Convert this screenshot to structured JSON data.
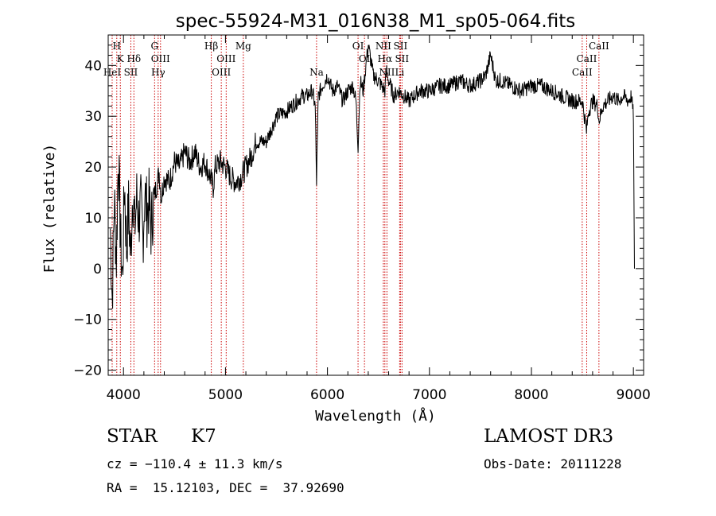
{
  "chart_data": {
    "type": "line",
    "title": "spec-55924-M31_016N38_M1_sp05-064.fits",
    "xlabel": "Wavelength (Å)",
    "ylabel": "Flux (relative)",
    "xlim": [
      3850,
      9100
    ],
    "ylim": [
      -21,
      46
    ],
    "x_ticks": [
      4000,
      5000,
      6000,
      7000,
      8000,
      9000
    ],
    "y_ticks": [
      -20,
      -10,
      0,
      10,
      20,
      30,
      40
    ],
    "series": [
      {
        "name": "flux",
        "x": [
          3870,
          3890,
          3910,
          3930,
          3950,
          3970,
          3990,
          4010,
          4030,
          4050,
          4070,
          4090,
          4110,
          4130,
          4150,
          4170,
          4190,
          4210,
          4230,
          4250,
          4270,
          4290,
          4310,
          4330,
          4350,
          4370,
          4400,
          4450,
          4500,
          4550,
          4600,
          4650,
          4700,
          4750,
          4800,
          4850,
          4880,
          4900,
          4950,
          5000,
          5050,
          5100,
          5150,
          5200,
          5250,
          5300,
          5400,
          5500,
          5600,
          5700,
          5750,
          5800,
          5850,
          5880,
          5893,
          5910,
          5950,
          6000,
          6050,
          6100,
          6150,
          6200,
          6250,
          6280,
          6300,
          6320,
          6350,
          6400,
          6450,
          6500,
          6530,
          6563,
          6580,
          6600,
          6650,
          6700,
          6750,
          6800,
          6900,
          7000,
          7100,
          7200,
          7300,
          7400,
          7500,
          7550,
          7600,
          7650,
          7700,
          7800,
          7900,
          8000,
          8100,
          8200,
          8300,
          8400,
          8500,
          8540,
          8560,
          8600,
          8650,
          8662,
          8700,
          8750,
          8800,
          8850,
          8900,
          8950,
          8980,
          9000,
          9010
        ],
        "y": [
          8,
          -6,
          14,
          2,
          23,
          6,
          -2,
          17,
          4,
          12,
          2,
          16,
          8,
          14,
          10,
          12,
          6,
          15,
          11,
          13,
          8,
          12,
          15,
          17,
          19,
          14,
          18,
          17,
          21,
          20,
          23,
          21,
          23,
          20,
          21,
          18,
          16,
          20,
          21,
          20,
          18,
          17,
          18,
          20,
          22,
          25,
          25,
          30,
          31,
          33,
          34,
          34,
          35,
          32,
          17,
          34,
          36,
          38,
          35,
          36,
          33,
          35,
          36,
          33,
          24,
          37,
          35,
          44,
          38,
          37,
          36,
          35,
          39,
          37,
          34,
          35,
          34,
          33,
          35,
          35,
          36,
          36,
          37,
          36,
          37,
          38,
          42,
          37,
          37,
          36,
          35,
          36,
          36,
          35,
          34,
          33,
          33,
          27,
          31,
          33,
          32,
          29,
          32,
          33,
          34,
          33,
          34,
          33,
          34,
          30,
          0
        ]
      }
    ],
    "lines": [
      {
        "name": "H",
        "wl": 3934,
        "row": 1
      },
      {
        "name": "K",
        "wl": 3969,
        "row": 2
      },
      {
        "name": "HeI",
        "wl": 3889,
        "row": 3
      },
      {
        "name": "SII",
        "wl": 4072,
        "row": 3
      },
      {
        "name": "Hδ",
        "wl": 4102,
        "row": 2
      },
      {
        "name": "G",
        "wl": 4305,
        "row": 1
      },
      {
        "name": "OIII",
        "wl": 4363,
        "row": 2
      },
      {
        "name": "Hγ",
        "wl": 4340,
        "row": 3
      },
      {
        "name": "Hβ",
        "wl": 4861,
        "row": 1
      },
      {
        "name": "OIII",
        "wl": 4959,
        "row": 3
      },
      {
        "name": "OIII",
        "wl": 5007,
        "row": 2
      },
      {
        "name": "Mg",
        "wl": 5175,
        "row": 1
      },
      {
        "name": "Na",
        "wl": 5893,
        "row": 3
      },
      {
        "name": "OI",
        "wl": 6300,
        "row": 1
      },
      {
        "name": "OI",
        "wl": 6363,
        "row": 2
      },
      {
        "name": "NII",
        "wl": 6548,
        "row": 1
      },
      {
        "name": "Hα",
        "wl": 6563,
        "row": 2
      },
      {
        "name": "NII",
        "wl": 6583,
        "row": 3
      },
      {
        "name": "SII",
        "wl": 6716,
        "row": 1
      },
      {
        "name": "SII",
        "wl": 6731,
        "row": 2
      },
      {
        "name": "Li",
        "wl": 6708,
        "row": 3
      },
      {
        "name": "CaII",
        "wl": 8498,
        "row": 3
      },
      {
        "name": "CaII",
        "wl": 8542,
        "row": 2
      },
      {
        "name": "CaII",
        "wl": 8662,
        "row": 1
      }
    ]
  },
  "info": {
    "class_label": "STAR",
    "subclass": "K7",
    "survey": "LAMOST DR3",
    "cz": "cz = −110.4 ± 11.3 km/s",
    "obs_date": "Obs-Date: 20111228",
    "radec": "RA =  15.12103, DEC =  37.92690"
  },
  "colors": {
    "line_marker": "#cc0000",
    "spectrum": "#000000"
  }
}
